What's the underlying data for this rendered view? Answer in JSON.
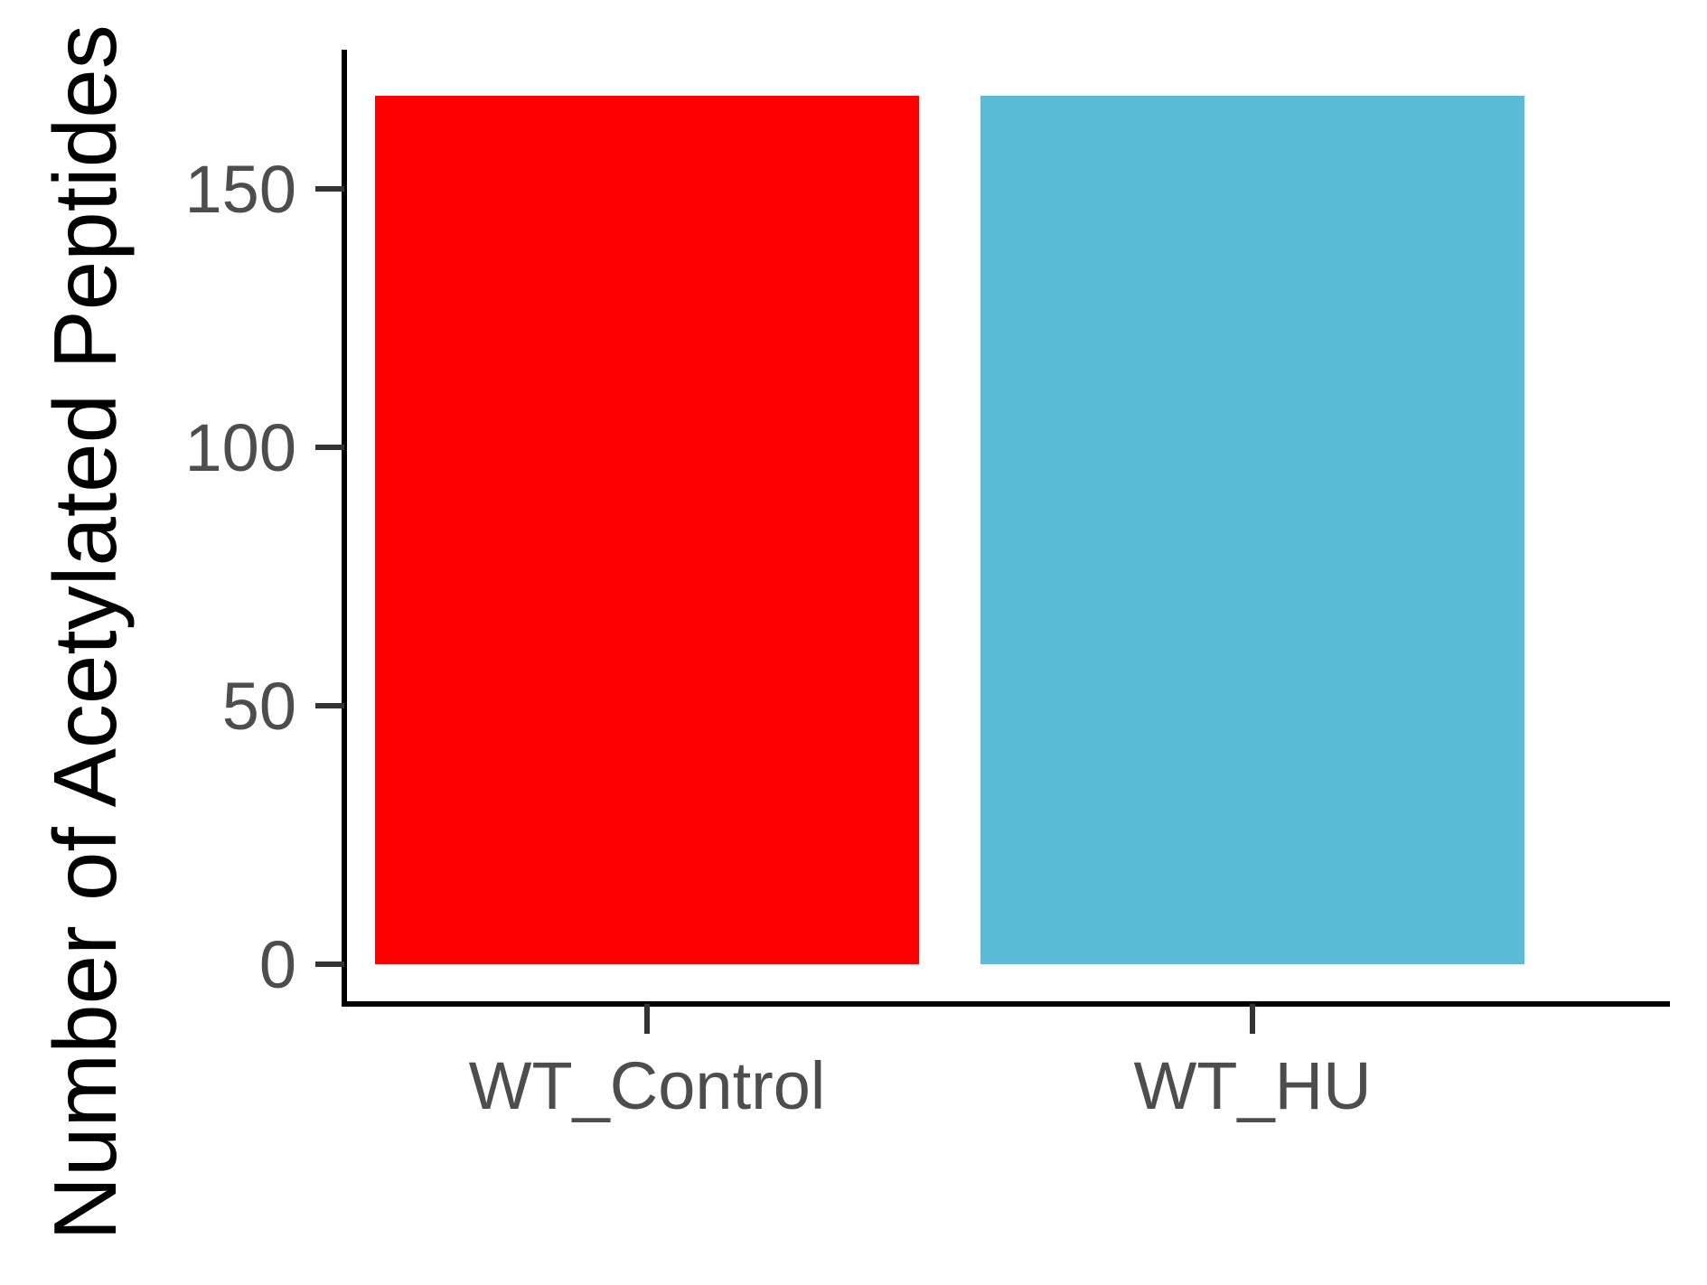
{
  "chart_data": {
    "type": "bar",
    "title": "",
    "xlabel": "",
    "ylabel": "Number of Acetylated Peptides",
    "categories": [
      "WT_Control",
      "WT_HU"
    ],
    "values": [
      168,
      168
    ],
    "ylim": [
      -8,
      175
    ],
    "yticks": [
      0,
      50,
      100,
      150
    ],
    "ytick_labels": [
      "0",
      "50",
      "100",
      "150"
    ],
    "bar_colors": [
      "#ff0000",
      "#5bbad5"
    ],
    "grid": false,
    "legend": "none"
  }
}
